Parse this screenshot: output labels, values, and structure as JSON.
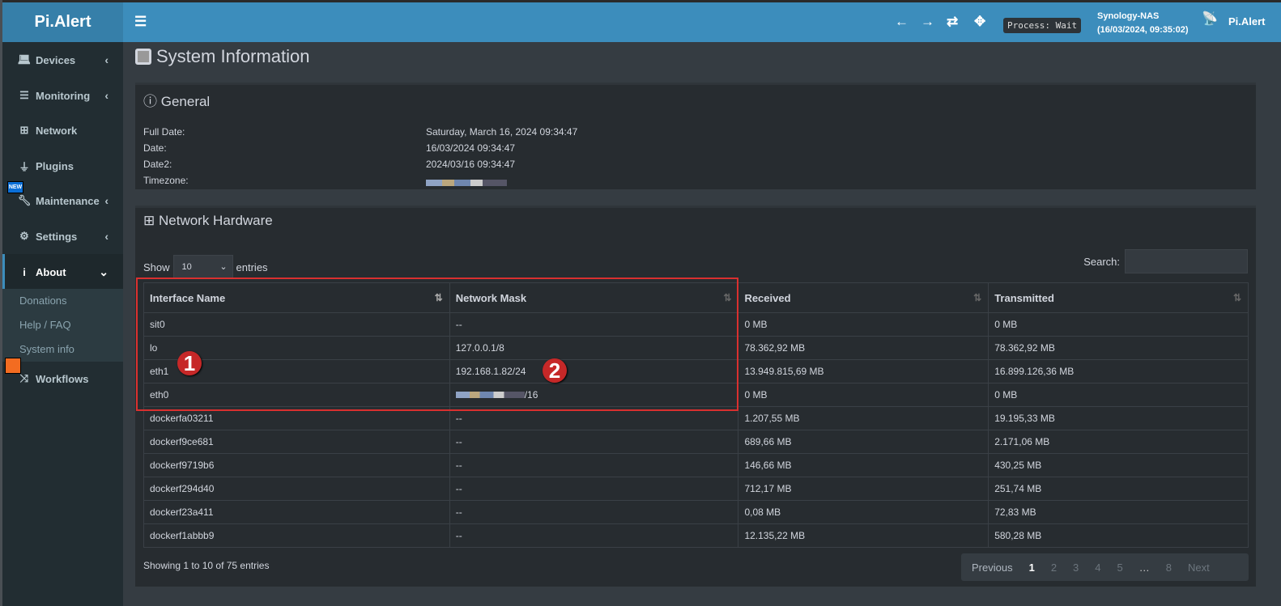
{
  "app": {
    "logo": "Pi.Alert"
  },
  "header": {
    "process": "Process: Wait",
    "host": "Synology-NAS",
    "host_time": "(16/03/2024, 09:35:02)",
    "brand": "Pi.Alert"
  },
  "sidebar": {
    "items": [
      {
        "label": "Devices",
        "icon": "laptop-icon"
      },
      {
        "label": "Monitoring",
        "icon": "chart-icon"
      },
      {
        "label": "Network",
        "icon": "sitemap-icon"
      },
      {
        "label": "Plugins",
        "icon": "plug-icon"
      },
      {
        "label": "Maintenance",
        "icon": "wrench-icon",
        "badge": "NEW"
      },
      {
        "label": "Settings",
        "icon": "gear-icon"
      },
      {
        "label": "About",
        "icon": "info-icon"
      },
      {
        "label": "Workflows",
        "icon": "shuffle-icon"
      }
    ],
    "about_sub": [
      "Donations",
      "Help / FAQ",
      "System info"
    ]
  },
  "page": {
    "title": "System Information"
  },
  "general": {
    "title": "General",
    "rows": [
      {
        "label": "Full Date:",
        "value": "Saturday, March 16, 2024 09:34:47"
      },
      {
        "label": "Date:",
        "value": "16/03/2024 09:34:47"
      },
      {
        "label": "Date2:",
        "value": "2024/03/16 09:34:47"
      },
      {
        "label": "Timezone:",
        "value": ""
      }
    ]
  },
  "network": {
    "title": "Network Hardware",
    "show": "Show",
    "entries": "entries",
    "page_size": "10",
    "search_label": "Search:",
    "columns": [
      "Interface Name",
      "Network Mask",
      "Received",
      "Transmitted"
    ],
    "rows": [
      [
        "sit0",
        "--",
        "0 MB",
        "0 MB"
      ],
      [
        "lo",
        "127.0.0.1/8",
        "78.362,92 MB",
        "78.362,92 MB"
      ],
      [
        "eth1",
        "192.168.1.82/24",
        "13.949.815,69 MB",
        "16.899.126,36 MB"
      ],
      [
        "eth0",
        "/16",
        "0 MB",
        "0 MB"
      ],
      [
        "dockerfa03211",
        "--",
        "1.207,55 MB",
        "19.195,33 MB"
      ],
      [
        "dockerf9ce681",
        "--",
        "689,66 MB",
        "2.171,06 MB"
      ],
      [
        "dockerf9719b6",
        "--",
        "146,66 MB",
        "430,25 MB"
      ],
      [
        "dockerf294d40",
        "--",
        "712,17 MB",
        "251,74 MB"
      ],
      [
        "dockerf23a411",
        "--",
        "0,08 MB",
        "72,83 MB"
      ],
      [
        "dockerf1abbb9",
        "--",
        "12.135,22 MB",
        "580,28 MB"
      ]
    ],
    "info": "Showing 1 to 10 of 75 entries",
    "pager": {
      "prev": "Previous",
      "pages": [
        "1",
        "2",
        "3",
        "4",
        "5",
        "…",
        "8"
      ],
      "next": "Next"
    }
  },
  "annotations": [
    "1",
    "2"
  ]
}
